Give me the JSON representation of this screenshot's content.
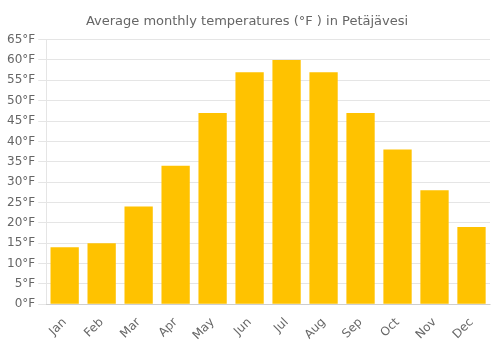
{
  "chart_data": {
    "type": "bar",
    "title": "Average monthly temperatures (°F ) in Petäjävesi",
    "categories": [
      "Jan",
      "Feb",
      "Mar",
      "Apr",
      "May",
      "Jun",
      "Jul",
      "Aug",
      "Sep",
      "Oct",
      "Nov",
      "Dec"
    ],
    "values": [
      14,
      15,
      24,
      34,
      47,
      57,
      60,
      57,
      47,
      38,
      28,
      19
    ],
    "color": "#FFC200",
    "ylim": [
      0,
      65
    ],
    "yticks": [
      {
        "value": 0,
        "label": "0°F"
      },
      {
        "value": 5,
        "label": "5°F"
      },
      {
        "value": 10,
        "label": "10°F"
      },
      {
        "value": 15,
        "label": "15°F"
      },
      {
        "value": 20,
        "label": "20°F"
      },
      {
        "value": 25,
        "label": "25°F"
      },
      {
        "value": 30,
        "label": "30°F"
      },
      {
        "value": 35,
        "label": "35°F"
      },
      {
        "value": 40,
        "label": "40°F"
      },
      {
        "value": 45,
        "label": "45°F"
      },
      {
        "value": 50,
        "label": "50°F"
      },
      {
        "value": 55,
        "label": "55°F"
      },
      {
        "value": 60,
        "label": "60°F"
      },
      {
        "value": 65,
        "label": "65°F"
      }
    ],
    "grid": true
  }
}
